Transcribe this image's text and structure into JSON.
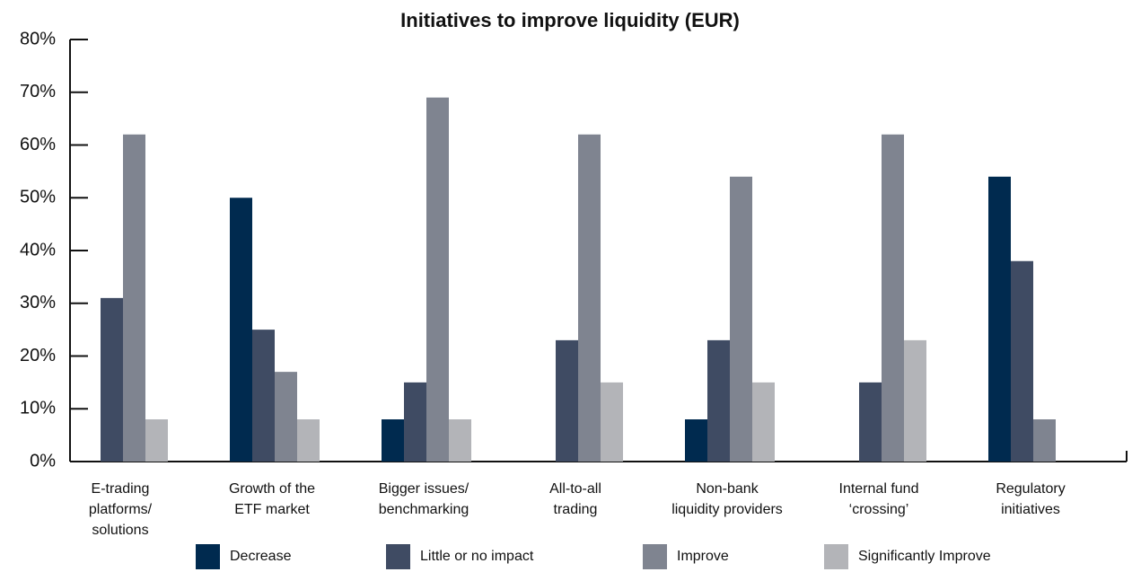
{
  "chart_data": {
    "type": "bar",
    "title": "Initiatives to improve liquidity (EUR)",
    "categories": [
      [
        "E-trading",
        "platforms/",
        "solutions"
      ],
      [
        "Growth of the",
        "ETF market"
      ],
      [
        "Bigger issues/",
        "benchmarking"
      ],
      [
        "All-to-all",
        "trading"
      ],
      [
        "Non-bank",
        "liquidity providers"
      ],
      [
        "Internal fund",
        "‘crossing’"
      ],
      [
        "Regulatory",
        "initiatives"
      ]
    ],
    "series": [
      {
        "name": "Decrease",
        "color": "#002a4f",
        "values": [
          0,
          50,
          8,
          0,
          8,
          0,
          54
        ]
      },
      {
        "name": "Little or no impact",
        "color": "#3f4b63",
        "values": [
          31,
          25,
          15,
          23,
          23,
          15,
          38
        ]
      },
      {
        "name": "Improve",
        "color": "#7f8490",
        "values": [
          62,
          17,
          69,
          62,
          54,
          62,
          8
        ]
      },
      {
        "name": "Significantly Improve",
        "color": "#b3b4b8",
        "values": [
          8,
          8,
          8,
          15,
          15,
          23,
          0
        ]
      }
    ],
    "ylim": [
      0,
      80
    ],
    "yticks": [
      {
        "value": 0,
        "label": "0%"
      },
      {
        "value": 10,
        "label": "10%"
      },
      {
        "value": 20,
        "label": "20%"
      },
      {
        "value": 30,
        "label": "30%"
      },
      {
        "value": 40,
        "label": "40%"
      },
      {
        "value": 50,
        "label": "50%"
      },
      {
        "value": 60,
        "label": "60%"
      },
      {
        "value": 70,
        "label": "70%"
      },
      {
        "value": 80,
        "label": "80%"
      }
    ],
    "legend": "bottom"
  }
}
